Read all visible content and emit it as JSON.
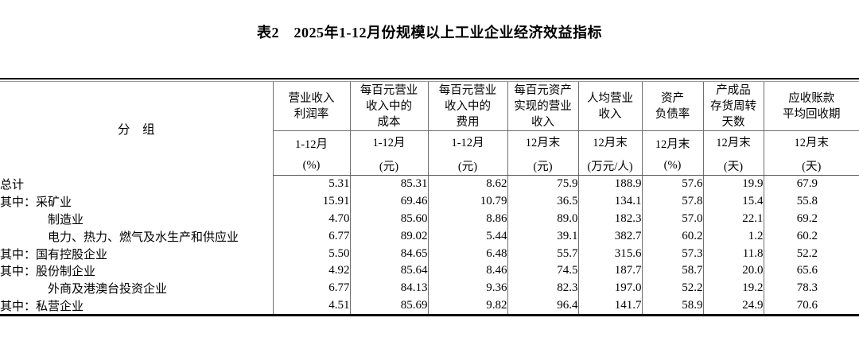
{
  "title": "表2　2025年1-12月份规模以上工业企业经济效益指标",
  "table": {
    "group_header": "分　组",
    "columns": [
      {
        "label": "营业收入\n利润率",
        "period": "1-12月",
        "unit": "(%)"
      },
      {
        "label": "每百元营业\n收入中的\n成本",
        "period": "1-12月",
        "unit": "(元)"
      },
      {
        "label": "每百元营业\n收入中的\n费用",
        "period": "1-12月",
        "unit": "(元)"
      },
      {
        "label": "每百元资产\n实现的营业\n收入",
        "period": "12月末",
        "unit": "(元)"
      },
      {
        "label": "人均营业\n收入",
        "period": "12月末",
        "unit": "(万元/人)"
      },
      {
        "label": "资产\n负债率",
        "period": "12月末",
        "unit": "(%)"
      },
      {
        "label": "产成品\n存货周转\n天数",
        "period": "12月末",
        "unit": "(天)"
      },
      {
        "label": "应收账款\n平均回收期",
        "period": "12月末",
        "unit": "(天)"
      }
    ],
    "rows": [
      {
        "label": "总计",
        "indent": false,
        "values": [
          "5.31",
          "85.31",
          "8.62",
          "75.9",
          "188.9",
          "57.6",
          "19.9",
          "67.9"
        ]
      },
      {
        "label": "其中：采矿业",
        "indent": false,
        "values": [
          "15.91",
          "69.46",
          "10.79",
          "36.5",
          "134.1",
          "57.8",
          "15.4",
          "55.8"
        ]
      },
      {
        "label": "制造业",
        "indent": true,
        "values": [
          "4.70",
          "85.60",
          "8.86",
          "89.0",
          "182.3",
          "57.0",
          "22.1",
          "69.2"
        ]
      },
      {
        "label": "电力、热力、燃气及水生产和供应业",
        "indent": true,
        "values": [
          "6.77",
          "89.02",
          "5.44",
          "39.1",
          "382.7",
          "60.2",
          "1.2",
          "60.2"
        ]
      },
      {
        "label": "其中：国有控股企业",
        "indent": false,
        "values": [
          "5.50",
          "84.65",
          "6.48",
          "55.7",
          "315.6",
          "57.3",
          "11.8",
          "52.2"
        ]
      },
      {
        "label": "其中：股份制企业",
        "indent": false,
        "values": [
          "4.92",
          "85.64",
          "8.46",
          "74.5",
          "187.7",
          "58.7",
          "20.0",
          "65.6"
        ]
      },
      {
        "label": "外商及港澳台投资企业",
        "indent": true,
        "values": [
          "6.77",
          "84.13",
          "9.36",
          "82.3",
          "197.0",
          "52.2",
          "19.2",
          "78.3"
        ]
      },
      {
        "label": "其中：私营企业",
        "indent": false,
        "values": [
          "4.51",
          "85.69",
          "9.82",
          "96.4",
          "141.7",
          "58.9",
          "24.9",
          "70.6"
        ]
      }
    ]
  }
}
